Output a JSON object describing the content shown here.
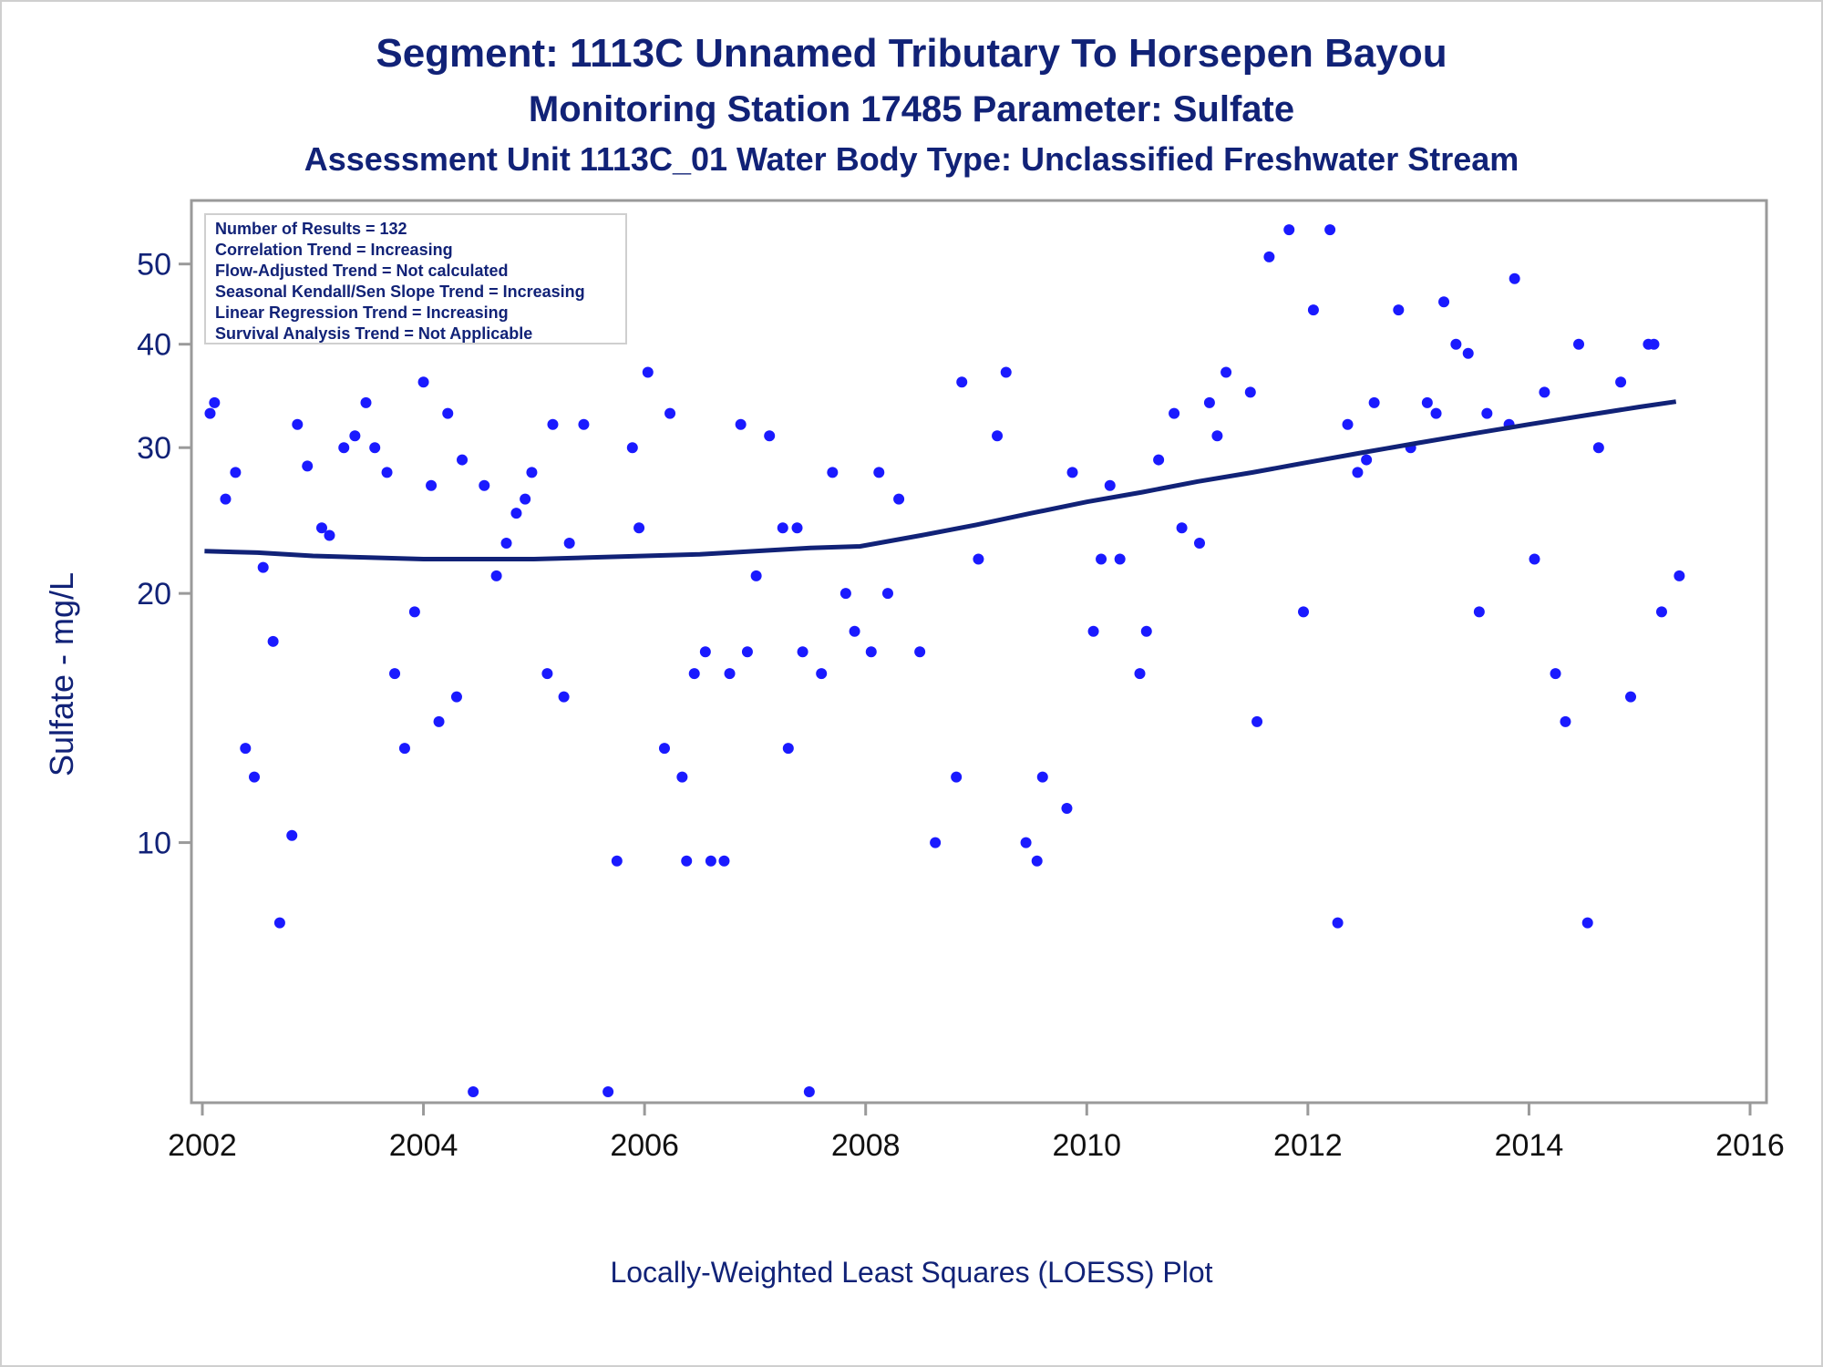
{
  "titles": {
    "line1": "Segment: 1113C  Unnamed Tributary To Horsepen Bayou",
    "line2": "Monitoring Station 17485 Parameter: Sulfate",
    "line3": "Assessment Unit 1113C_01   Water Body Type: Unclassified Freshwater Stream"
  },
  "footnote": "Locally-Weighted Least Squares (LOESS) Plot",
  "colors": {
    "text": "#112277",
    "points": "#1a1aff",
    "line": "#112277",
    "frame": "#9a9a9a"
  },
  "chart_data": {
    "type": "scatter",
    "xlabel": "",
    "ylabel": "Sulfate - mg/L",
    "y_scale": "log",
    "xlim": [
      2002,
      2016
    ],
    "ylim": [
      5,
      57
    ],
    "x_ticks": [
      "2002",
      "2004",
      "2006",
      "2008",
      "2010",
      "2012",
      "2014",
      "2016"
    ],
    "y_ticks": [
      "10",
      "20",
      "30",
      "40",
      "50"
    ],
    "legend_box": [
      "Number of Results = 132",
      "Correlation Trend = Increasing",
      "Flow-Adjusted Trend = Not calculated",
      "Seasonal Kendall/Sen Slope Trend = Increasing",
      "Linear Regression Trend = Increasing",
      "Survival Analysis Trend = Not Applicable"
    ],
    "legend_placement": "top-left inside plot",
    "points": [
      [
        2002.07,
        33
      ],
      [
        2002.11,
        34
      ],
      [
        2002.21,
        26
      ],
      [
        2002.3,
        28
      ],
      [
        2002.39,
        13
      ],
      [
        2002.47,
        12
      ],
      [
        2002.55,
        21.5
      ],
      [
        2002.64,
        17.5
      ],
      [
        2002.7,
        8
      ],
      [
        2002.81,
        10.2
      ],
      [
        2002.86,
        32
      ],
      [
        2002.95,
        28.5
      ],
      [
        2003.08,
        24
      ],
      [
        2003.15,
        23.5
      ],
      [
        2003.28,
        30
      ],
      [
        2003.38,
        31
      ],
      [
        2003.48,
        34
      ],
      [
        2003.56,
        30
      ],
      [
        2003.67,
        28
      ],
      [
        2003.74,
        16
      ],
      [
        2003.83,
        13
      ],
      [
        2003.92,
        19
      ],
      [
        2004.0,
        36
      ],
      [
        2004.07,
        27
      ],
      [
        2004.14,
        14
      ],
      [
        2004.22,
        33
      ],
      [
        2004.3,
        15
      ],
      [
        2004.35,
        29
      ],
      [
        2004.45,
        5
      ],
      [
        2004.55,
        27
      ],
      [
        2004.66,
        21
      ],
      [
        2004.75,
        23
      ],
      [
        2004.84,
        25
      ],
      [
        2004.92,
        26
      ],
      [
        2004.98,
        28
      ],
      [
        2005.12,
        16
      ],
      [
        2005.17,
        32
      ],
      [
        2005.27,
        15
      ],
      [
        2005.32,
        23
      ],
      [
        2005.45,
        32
      ],
      [
        2005.67,
        5
      ],
      [
        2005.75,
        9.5
      ],
      [
        2005.89,
        30
      ],
      [
        2005.95,
        24
      ],
      [
        2006.03,
        37
      ],
      [
        2006.18,
        13
      ],
      [
        2006.23,
        33
      ],
      [
        2006.34,
        12
      ],
      [
        2006.38,
        9.5
      ],
      [
        2006.45,
        16
      ],
      [
        2006.55,
        17
      ],
      [
        2006.6,
        9.5
      ],
      [
        2006.72,
        9.5
      ],
      [
        2006.77,
        16
      ],
      [
        2006.87,
        32
      ],
      [
        2006.93,
        17
      ],
      [
        2007.01,
        21
      ],
      [
        2007.13,
        31
      ],
      [
        2007.25,
        24
      ],
      [
        2007.3,
        13
      ],
      [
        2007.38,
        24
      ],
      [
        2007.43,
        17
      ],
      [
        2007.49,
        5
      ],
      [
        2007.6,
        16
      ],
      [
        2007.7,
        28
      ],
      [
        2007.82,
        20
      ],
      [
        2007.9,
        18
      ],
      [
        2008.05,
        17
      ],
      [
        2008.12,
        28
      ],
      [
        2008.2,
        20
      ],
      [
        2008.3,
        26
      ],
      [
        2008.49,
        17
      ],
      [
        2008.63,
        10
      ],
      [
        2008.82,
        12
      ],
      [
        2008.87,
        36
      ],
      [
        2009.02,
        22
      ],
      [
        2009.19,
        31
      ],
      [
        2009.27,
        37
      ],
      [
        2009.45,
        10
      ],
      [
        2009.55,
        9.5
      ],
      [
        2009.6,
        12
      ],
      [
        2009.82,
        11
      ],
      [
        2009.87,
        28
      ],
      [
        2010.06,
        18
      ],
      [
        2010.13,
        22
      ],
      [
        2010.21,
        27
      ],
      [
        2010.3,
        22
      ],
      [
        2010.48,
        16
      ],
      [
        2010.54,
        18
      ],
      [
        2010.65,
        29
      ],
      [
        2010.79,
        33
      ],
      [
        2010.86,
        24
      ],
      [
        2011.02,
        23
      ],
      [
        2011.11,
        34
      ],
      [
        2011.18,
        31
      ],
      [
        2011.26,
        37
      ],
      [
        2011.48,
        35
      ],
      [
        2011.54,
        14
      ],
      [
        2011.65,
        51
      ],
      [
        2011.83,
        55
      ],
      [
        2011.96,
        19
      ],
      [
        2012.05,
        44
      ],
      [
        2012.2,
        55
      ],
      [
        2012.27,
        8
      ],
      [
        2012.36,
        32
      ],
      [
        2012.45,
        28
      ],
      [
        2012.53,
        29
      ],
      [
        2012.6,
        34
      ],
      [
        2012.82,
        44
      ],
      [
        2012.93,
        30
      ],
      [
        2013.08,
        34
      ],
      [
        2013.16,
        33
      ],
      [
        2013.23,
        45
      ],
      [
        2013.34,
        40
      ],
      [
        2013.45,
        39
      ],
      [
        2013.55,
        19
      ],
      [
        2013.62,
        33
      ],
      [
        2013.82,
        32
      ],
      [
        2013.87,
        48
      ],
      [
        2014.05,
        22
      ],
      [
        2014.14,
        35
      ],
      [
        2014.24,
        16
      ],
      [
        2014.33,
        14
      ],
      [
        2014.45,
        40
      ],
      [
        2014.53,
        8
      ],
      [
        2014.63,
        30
      ],
      [
        2014.83,
        36
      ],
      [
        2014.92,
        15
      ],
      [
        2015.08,
        40
      ],
      [
        2015.13,
        40
      ],
      [
        2015.2,
        19
      ],
      [
        2015.36,
        21
      ]
    ],
    "loess": [
      [
        2002.02,
        22.5
      ],
      [
        2002.5,
        22.4
      ],
      [
        2003.0,
        22.2
      ],
      [
        2003.5,
        22.1
      ],
      [
        2004.0,
        22.0
      ],
      [
        2004.5,
        22.0
      ],
      [
        2005.0,
        22.0
      ],
      [
        2005.5,
        22.1
      ],
      [
        2006.0,
        22.2
      ],
      [
        2006.5,
        22.3
      ],
      [
        2007.0,
        22.5
      ],
      [
        2007.5,
        22.7
      ],
      [
        2007.95,
        22.8
      ],
      [
        2008.5,
        23.5
      ],
      [
        2009.0,
        24.2
      ],
      [
        2009.5,
        25.0
      ],
      [
        2010.0,
        25.8
      ],
      [
        2010.5,
        26.5
      ],
      [
        2011.0,
        27.3
      ],
      [
        2011.5,
        28.0
      ],
      [
        2012.0,
        28.8
      ],
      [
        2012.5,
        29.6
      ],
      [
        2013.0,
        30.4
      ],
      [
        2013.5,
        31.2
      ],
      [
        2014.0,
        32.0
      ],
      [
        2014.5,
        32.8
      ],
      [
        2015.0,
        33.6
      ],
      [
        2015.33,
        34.1
      ]
    ]
  }
}
